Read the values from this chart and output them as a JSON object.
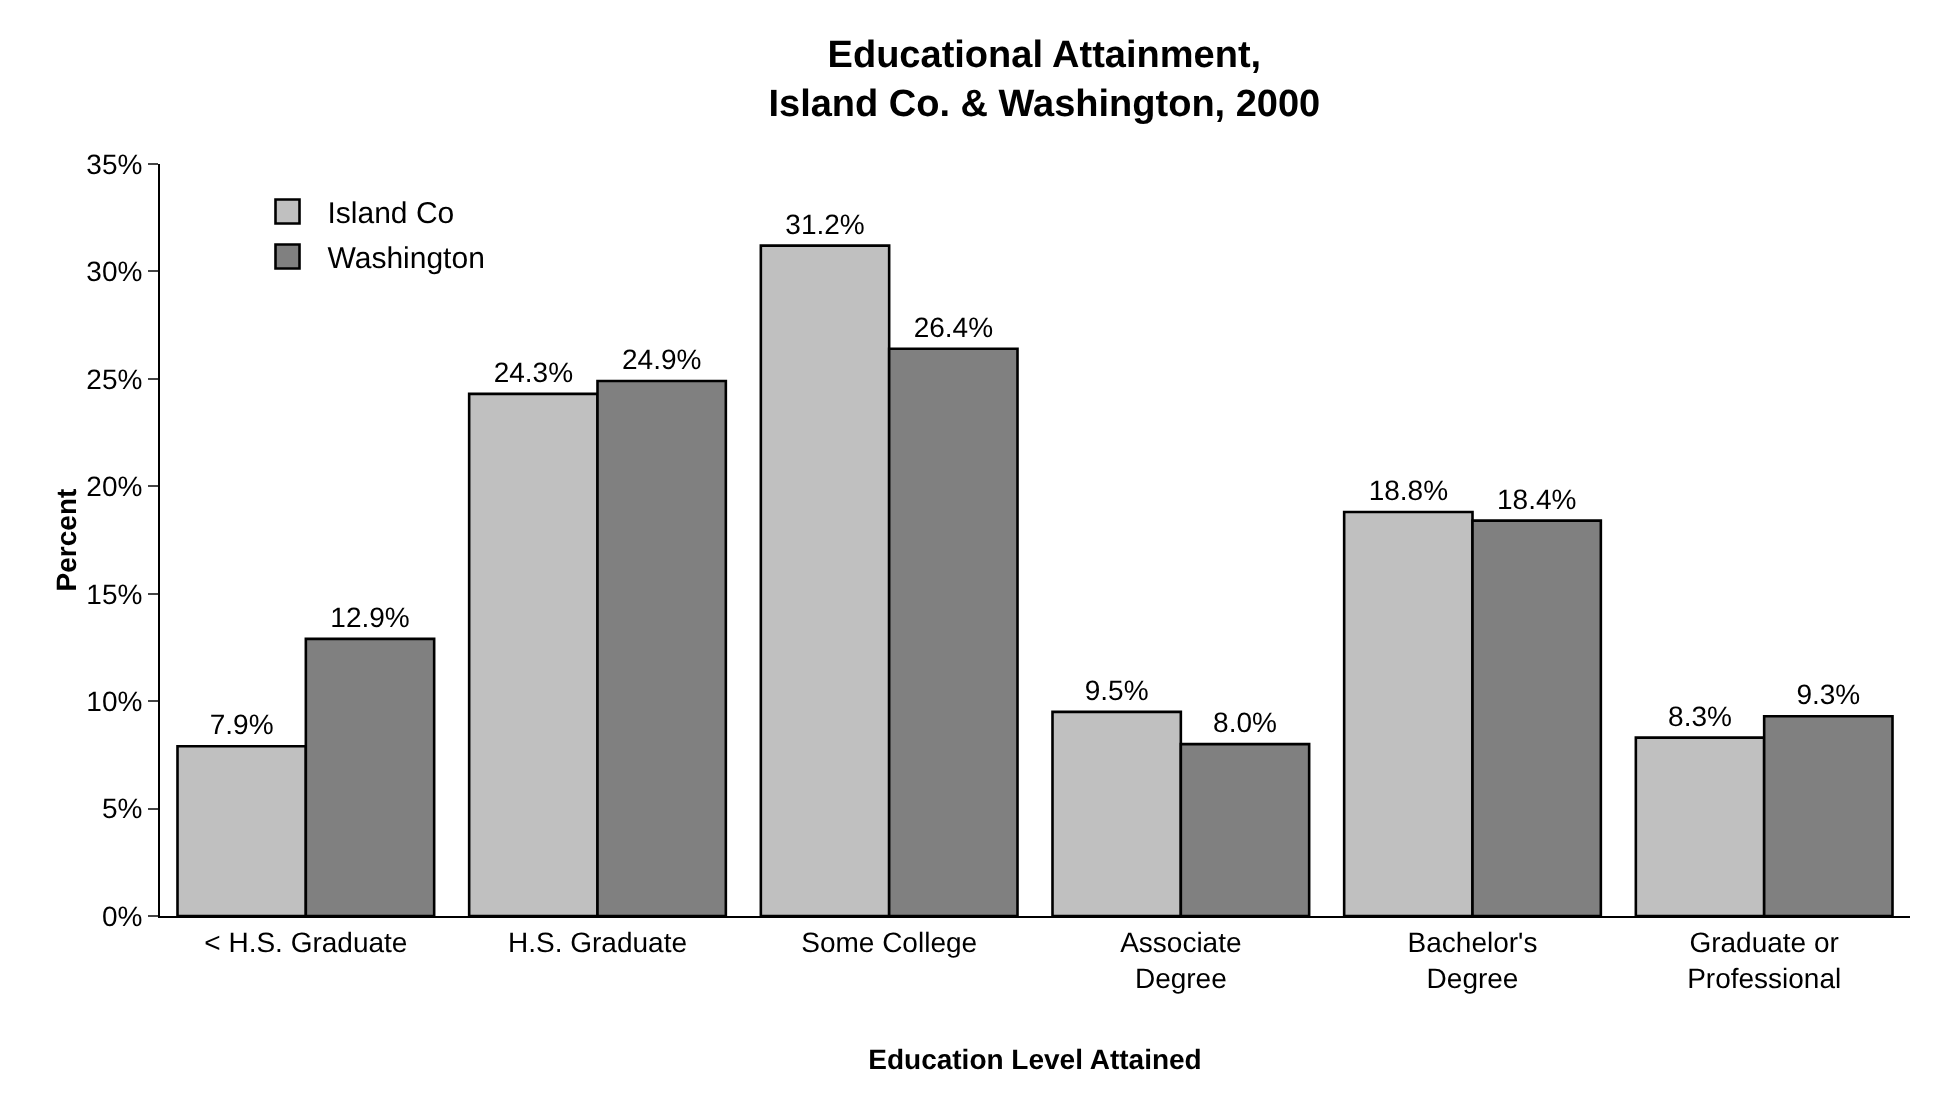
{
  "chart_data": {
    "type": "bar",
    "title": "Educational Attainment,\nIsland Co. & Washington, 2000",
    "xlabel": "Education Level Attained",
    "ylabel": "Percent",
    "categories": [
      "< H.S. Graduate",
      "H.S. Graduate",
      "Some College",
      "Associate\nDegree",
      "Bachelor's\nDegree",
      "Graduate or\nProfessional"
    ],
    "series": [
      {
        "name": "Island Co",
        "color": "#c0c0c0",
        "values": [
          7.9,
          24.3,
          31.2,
          9.5,
          18.8,
          8.3
        ],
        "value_labels": [
          "7.9%",
          "24.3%",
          "31.2%",
          "9.5%",
          "18.8%",
          "8.3%"
        ]
      },
      {
        "name": "Washington",
        "color": "#808080",
        "values": [
          12.9,
          24.9,
          26.4,
          8.0,
          18.4,
          9.3
        ],
        "value_labels": [
          "12.9%",
          "24.9%",
          "26.4%",
          "8.0%",
          "18.4%",
          "9.3%"
        ]
      }
    ],
    "ylim": [
      0,
      35
    ],
    "yticks": [
      {
        "value": 0,
        "label": "0%"
      },
      {
        "value": 5,
        "label": "5%"
      },
      {
        "value": 10,
        "label": "10%"
      },
      {
        "value": 15,
        "label": "15%"
      },
      {
        "value": 20,
        "label": "20%"
      },
      {
        "value": 25,
        "label": "25%"
      },
      {
        "value": 30,
        "label": "30%"
      },
      {
        "value": 35,
        "label": "35%"
      }
    ],
    "grid": false,
    "legend": "top left"
  }
}
